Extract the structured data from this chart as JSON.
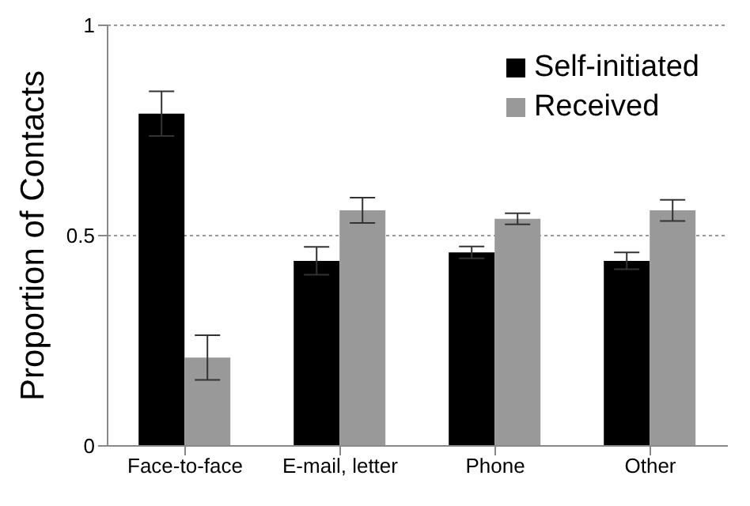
{
  "chart_data": {
    "type": "bar",
    "ylabel": "Proportion of Contacts",
    "categories": [
      "Face-to-face",
      "E-mail, letter",
      "Phone",
      "Other"
    ],
    "series": [
      {
        "name": "Self-initiated",
        "color": "#000000",
        "values": [
          0.79,
          0.44,
          0.46,
          0.44
        ],
        "errors": [
          0.053,
          0.033,
          0.014,
          0.02
        ]
      },
      {
        "name": "Received",
        "color": "#999999",
        "values": [
          0.21,
          0.56,
          0.54,
          0.56
        ],
        "errors": [
          0.053,
          0.03,
          0.013,
          0.025
        ]
      }
    ],
    "ylim": [
      0,
      1
    ],
    "yticks": [
      0,
      0.5,
      1
    ],
    "grid": "y",
    "legend": "top right"
  }
}
